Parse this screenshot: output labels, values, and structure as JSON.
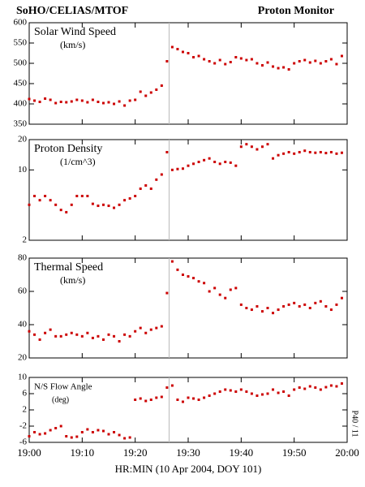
{
  "title_left": "SoHO/CELIAS/MTOF",
  "title_right": "Proton Monitor",
  "xlabel": "HR:MIN (10 Apr 2004, DOY 101)",
  "side_label": "P40 / 11",
  "xlim": [
    0,
    60
  ],
  "xticks": [
    {
      "value": 0,
      "label": "19:00"
    },
    {
      "value": 10,
      "label": "19:10"
    },
    {
      "value": 20,
      "label": "19:20"
    },
    {
      "value": 30,
      "label": "19:30"
    },
    {
      "value": 40,
      "label": "19:40"
    },
    {
      "value": 50,
      "label": "19:50"
    },
    {
      "value": 60,
      "label": "20:00"
    }
  ],
  "vline": 26.4,
  "chart_data": [
    {
      "type": "scatter",
      "title": "Solar Wind Speed",
      "units": "(km/s)",
      "color": "#cc0000",
      "ylim": [
        350,
        600
      ],
      "yticks": [
        350,
        400,
        450,
        500,
        550,
        600
      ],
      "x": [
        0,
        1,
        2,
        3,
        4,
        5,
        6,
        7,
        8,
        9,
        10,
        11,
        12,
        13,
        14,
        15,
        16,
        17,
        18,
        19,
        20,
        21,
        22,
        23,
        24,
        25,
        26,
        27,
        28,
        29,
        30,
        31,
        32,
        33,
        34,
        35,
        36,
        37,
        38,
        39,
        40,
        41,
        42,
        43,
        44,
        45,
        46,
        47,
        48,
        49,
        50,
        51,
        52,
        53,
        54,
        55,
        56,
        57,
        58,
        59
      ],
      "values": [
        412,
        408,
        405,
        413,
        410,
        402,
        405,
        404,
        406,
        410,
        408,
        404,
        410,
        405,
        402,
        404,
        400,
        406,
        396,
        408,
        410,
        430,
        420,
        428,
        435,
        445,
        505,
        540,
        535,
        528,
        525,
        515,
        518,
        510,
        505,
        500,
        508,
        498,
        503,
        515,
        512,
        508,
        510,
        500,
        495,
        502,
        492,
        488,
        490,
        485,
        500,
        505,
        508,
        502,
        506,
        500,
        505,
        510,
        498,
        518
      ]
    },
    {
      "type": "scatter",
      "title": "Proton Density",
      "units": "(1/cm^3)",
      "color": "#cc0000",
      "log_scale": true,
      "ylim": [
        2,
        20
      ],
      "yticks": [
        2,
        10,
        20
      ],
      "x": [
        0,
        1,
        2,
        3,
        4,
        5,
        6,
        7,
        8,
        9,
        10,
        11,
        12,
        13,
        14,
        15,
        16,
        17,
        18,
        19,
        20,
        21,
        22,
        23,
        24,
        25,
        26,
        27,
        28,
        29,
        30,
        31,
        32,
        33,
        34,
        35,
        36,
        37,
        38,
        39,
        40,
        41,
        42,
        43,
        44,
        45,
        46,
        47,
        48,
        49,
        50,
        51,
        52,
        53,
        54,
        55,
        56,
        57,
        58,
        59
      ],
      "values": [
        4.5,
        5.5,
        5,
        5.5,
        5,
        4.5,
        4,
        3.8,
        4.5,
        5.5,
        5.5,
        5.5,
        4.6,
        4.4,
        4.5,
        4.4,
        4.2,
        4.5,
        5,
        5.2,
        5.5,
        6.5,
        7,
        6.5,
        8,
        9,
        15,
        10,
        10.2,
        10.3,
        11,
        11.5,
        12,
        12.5,
        13,
        12,
        11.5,
        12,
        11.8,
        11,
        17,
        18,
        17,
        16,
        17,
        18,
        13,
        14,
        14.5,
        15,
        14.5,
        15,
        15.5,
        15,
        14.8,
        15,
        14.7,
        15,
        14.5,
        14.8
      ]
    },
    {
      "type": "scatter",
      "title": "Thermal Speed",
      "units": "(km/s)",
      "color": "#cc0000",
      "ylim": [
        20,
        80
      ],
      "yticks": [
        20,
        40,
        60,
        80
      ],
      "x": [
        0,
        1,
        2,
        3,
        4,
        5,
        6,
        7,
        8,
        9,
        10,
        11,
        12,
        13,
        14,
        15,
        16,
        17,
        18,
        19,
        20,
        21,
        22,
        23,
        24,
        25,
        26,
        27,
        28,
        29,
        30,
        31,
        32,
        33,
        34,
        35,
        36,
        37,
        38,
        39,
        40,
        41,
        42,
        43,
        44,
        45,
        46,
        47,
        48,
        49,
        50,
        51,
        52,
        53,
        54,
        55,
        56,
        57,
        58,
        59
      ],
      "values": [
        36,
        34,
        31,
        35,
        37,
        33,
        33,
        34,
        35,
        34,
        33,
        35,
        32,
        33,
        31,
        34,
        33,
        30,
        34,
        33,
        36,
        38,
        35,
        37,
        38,
        39,
        59,
        78,
        73,
        70,
        69,
        68,
        66,
        65,
        60,
        62,
        58,
        56,
        61,
        62,
        52,
        50,
        49,
        51,
        48,
        50,
        47,
        49,
        51,
        52,
        53,
        51,
        52,
        50,
        53,
        54,
        51,
        49,
        52,
        56
      ]
    },
    {
      "type": "scatter",
      "title": "N/S Flow Angle",
      "units": "(deg)",
      "color": "#cc0000",
      "small_title": true,
      "ylim": [
        -6,
        10
      ],
      "yticks": [
        -6,
        -2,
        2,
        6,
        10
      ],
      "x": [
        0,
        1,
        2,
        3,
        4,
        5,
        6,
        7,
        8,
        9,
        10,
        11,
        12,
        13,
        14,
        15,
        16,
        17,
        18,
        19,
        20,
        21,
        22,
        23,
        24,
        25,
        26,
        27,
        28,
        29,
        30,
        31,
        32,
        33,
        34,
        35,
        36,
        37,
        38,
        39,
        40,
        41,
        42,
        43,
        44,
        45,
        46,
        47,
        48,
        49,
        50,
        51,
        52,
        53,
        54,
        55,
        56,
        57,
        58,
        59
      ],
      "values": [
        -4.5,
        -3.5,
        -4,
        -3.8,
        -3,
        -2.5,
        -2,
        -4.5,
        -4.8,
        -4.6,
        -3.5,
        -2.8,
        -3.5,
        -3,
        -3.2,
        -4,
        -3.5,
        -4.2,
        -5,
        -4.8,
        4.5,
        4.8,
        4.2,
        4.5,
        5,
        5.2,
        7.5,
        8,
        4.5,
        4,
        5,
        4.8,
        4.5,
        5,
        5.5,
        6,
        6.5,
        7,
        6.8,
        6.5,
        7,
        6.5,
        6,
        5.5,
        5.8,
        6,
        7,
        6.2,
        6.5,
        5.5,
        7,
        7.5,
        7.2,
        7.8,
        7.5,
        7,
        7.6,
        8,
        7.8,
        8.5
      ]
    }
  ]
}
